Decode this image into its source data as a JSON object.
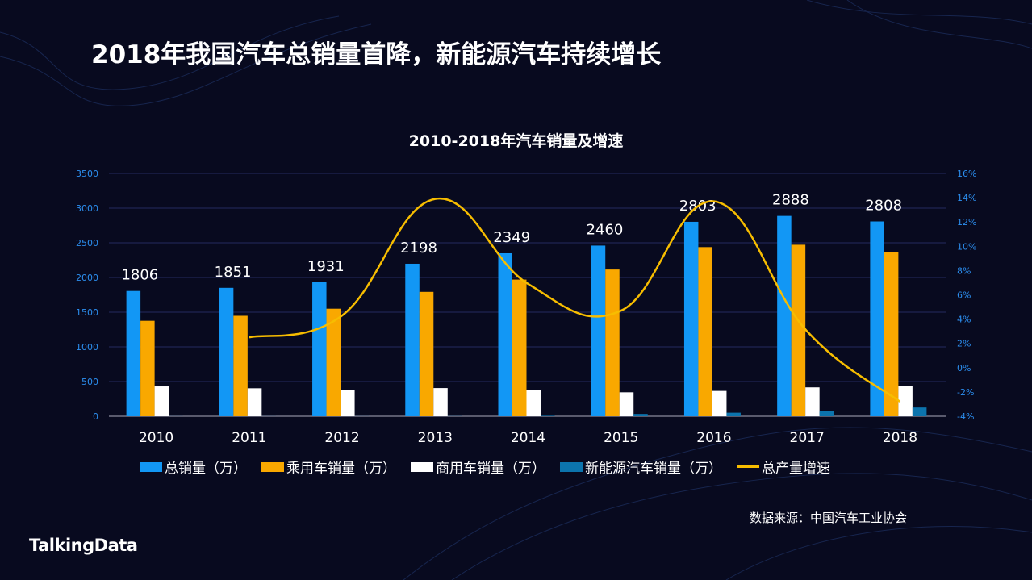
{
  "page": {
    "title": "2018年我国汽车总销量首降，新能源汽车持续增长",
    "source": "数据来源：中国汽车工业协会",
    "logo": "TalkingData"
  },
  "chart_data": {
    "type": "bar",
    "title": "2010-2018年汽车销量及增速",
    "categories": [
      "2010",
      "2011",
      "2012",
      "2013",
      "2014",
      "2015",
      "2016",
      "2017",
      "2018"
    ],
    "y_left": {
      "range": [
        0,
        3500
      ],
      "ticks": [
        "0",
        "500",
        "1000",
        "1500",
        "2000",
        "2500",
        "3000",
        "3500"
      ]
    },
    "y_right": {
      "range": [
        -4,
        16
      ],
      "ticks": [
        "-4%",
        "-2%",
        "0%",
        "2%",
        "4%",
        "6%",
        "8%",
        "10%",
        "12%",
        "14%",
        "16%"
      ]
    },
    "grid": true,
    "legend_position": "bottom",
    "series": [
      {
        "name": "总销量（万）",
        "type": "bar",
        "color": "#1297f5",
        "values": [
          1806,
          1851,
          1931,
          2198,
          2349,
          2460,
          2803,
          2888,
          2808
        ],
        "labels": [
          "1806",
          "1851",
          "1931",
          "2198",
          "2349",
          "2460",
          "2803",
          "2888",
          "2808"
        ]
      },
      {
        "name": "乘用车销量（万）",
        "type": "bar",
        "color": "#f9a800",
        "values": [
          1376,
          1448,
          1550,
          1793,
          1970,
          2115,
          2438,
          2472,
          2371
        ]
      },
      {
        "name": "商用车销量（万）",
        "type": "bar",
        "color": "#ffffff",
        "values": [
          430,
          403,
          381,
          406,
          379,
          345,
          365,
          416,
          437
        ]
      },
      {
        "name": "新能源汽车销量（万）",
        "type": "bar",
        "color": "#0c74ad",
        "values": [
          1,
          1,
          1,
          2,
          7,
          33,
          51,
          78,
          126
        ]
      },
      {
        "name": "总产量增速",
        "type": "line",
        "axis": "right",
        "color": "#f7bd00",
        "values": [
          null,
          2.5,
          4.3,
          13.9,
          6.9,
          4.7,
          13.7,
          3.0,
          -2.8
        ]
      }
    ]
  }
}
